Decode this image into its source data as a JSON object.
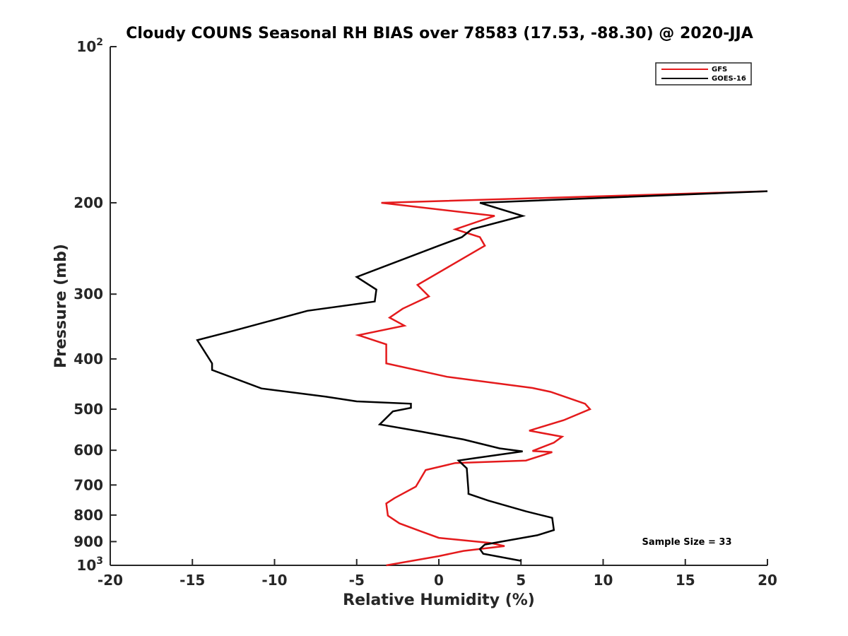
{
  "chart_data": {
    "type": "line",
    "title": "Cloudy COUNS Seasonal RH BIAS over 78583 (17.53, -88.30) @ 2020-JJA",
    "xlabel": "Relative Humidity (%)",
    "ylabel": "Pressure (mb)",
    "xlim": [
      -20,
      20
    ],
    "ylim": [
      100,
      1000
    ],
    "y_scale": "log",
    "y_reversed": true,
    "x_ticks": [
      "-20",
      "-15",
      "-10",
      "-5",
      "0",
      "5",
      "10",
      "15",
      "20"
    ],
    "y_ticks": [
      {
        "value": 100,
        "base": "10",
        "exp": "2"
      },
      {
        "value": 200,
        "label": "200"
      },
      {
        "value": 300,
        "label": "300"
      },
      {
        "value": 400,
        "label": "400"
      },
      {
        "value": 500,
        "label": "500"
      },
      {
        "value": 600,
        "label": "600"
      },
      {
        "value": 700,
        "label": "700"
      },
      {
        "value": 800,
        "label": "800"
      },
      {
        "value": 900,
        "label": "900"
      },
      {
        "value": 1000,
        "base": "10",
        "exp": "3"
      }
    ],
    "legend_position": "top-right",
    "annotation": "Sample Size = 33",
    "series": [
      {
        "name": "GFS",
        "color": "#e41a1c",
        "x": [
          20,
          -3.5,
          3.4,
          1.0,
          2.5,
          2.8,
          -1.3,
          -0.6,
          -2.2,
          -3.0,
          -2.1,
          -4.9,
          -3.2,
          -3.2,
          0.5,
          5.7,
          6.8,
          8.9,
          9.2,
          7.6,
          5.5,
          7.5,
          7.0,
          5.7,
          6.9,
          5.3,
          1.0,
          -0.8,
          -1.4,
          -2.7,
          -3.2,
          -3.1,
          -2.4,
          -1.0,
          0.0,
          3.1,
          4.0,
          1.5,
          0.0,
          -3.2
        ],
        "y": [
          190,
          200,
          212,
          225,
          233,
          242,
          288,
          303,
          320,
          333,
          345,
          360,
          375,
          408,
          433,
          455,
          463,
          488,
          500,
          525,
          550,
          565,
          580,
          602,
          605,
          628,
          635,
          655,
          705,
          742,
          760,
          802,
          830,
          862,
          885,
          905,
          918,
          938,
          960,
          1000
        ]
      },
      {
        "name": "GOES-16",
        "color": "#000000",
        "x": [
          20,
          2.5,
          5.1,
          2.0,
          1.4,
          0.0,
          -5.0,
          -3.8,
          -3.9,
          -8.0,
          -12.5,
          -14.7,
          -13.8,
          -13.8,
          -10.8,
          -6.9,
          -5.0,
          -1.7,
          -1.7,
          -2.8,
          -3.6,
          -1.1,
          1.5,
          3.7,
          5.1,
          2.1,
          1.2,
          1.7,
          1.8,
          1.8,
          3.0,
          5.3,
          6.9,
          7.0,
          6.0,
          2.8,
          2.5,
          2.7,
          5.0
        ],
        "y": [
          190,
          200,
          212,
          225,
          233,
          242,
          278,
          294,
          310,
          323,
          353,
          368,
          408,
          420,
          456,
          473,
          483,
          488,
          497,
          505,
          535,
          552,
          572,
          595,
          603,
          622,
          628,
          650,
          718,
          728,
          750,
          787,
          810,
          855,
          875,
          912,
          930,
          950,
          980
        ]
      }
    ]
  }
}
